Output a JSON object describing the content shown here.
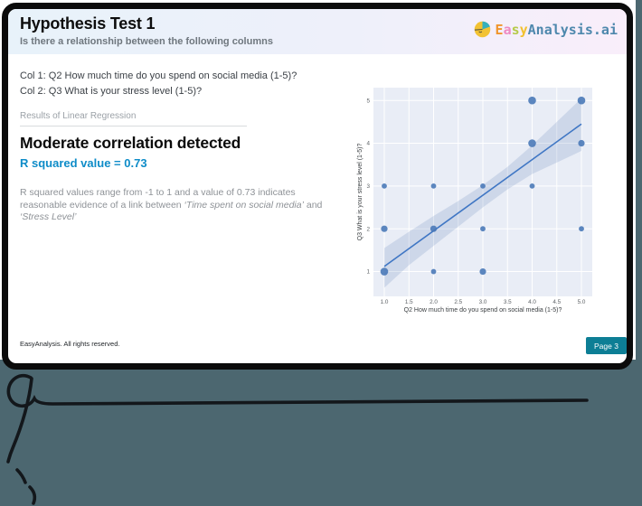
{
  "slide": {
    "header": {
      "title": "Hypothesis Test 1",
      "subtitle": "Is there a relationship between the following columns"
    },
    "logo": {
      "icon": "pie-chart",
      "icon_colors": {
        "pie": "#f2c233",
        "wedge": "#35b0bc",
        "slice_line": "#55543e"
      },
      "easy_letters": [
        {
          "ch": "E",
          "color": "#f0952c"
        },
        {
          "ch": "a",
          "color": "#ee8ac2"
        },
        {
          "ch": "s",
          "color": "#b6ca4a"
        },
        {
          "ch": "y",
          "color": "#f2c12f"
        }
      ],
      "rest": "Analysis.ai",
      "rest_color": "#4e88ad"
    },
    "columns": [
      "Col 1: Q2 How much time do you spend on social media (1-5)?",
      "Col 2: Q3 What is your stress level (1-5)?"
    ],
    "results": {
      "section_label": "Results of Linear Regression",
      "headline": "Moderate correlation detected",
      "r_squared_line": "R squared value = 0.73",
      "r_squared_color": "#0e8cc8",
      "explanation_parts": [
        {
          "text": "R squared values range from -1 to 1 and a value of 0.73 indicates reasonable evidence of a link between ",
          "italic": false
        },
        {
          "text": "‘Time spent on social media’",
          "italic": true
        },
        {
          "text": " and ",
          "italic": false
        },
        {
          "text": "‘Stress Level’",
          "italic": true
        }
      ]
    },
    "footer": {
      "copyright": "EasyAnalysis. All rights reserved.",
      "page_badge": "Page 3",
      "badge_color": "#0d7e95"
    }
  },
  "chart_data": {
    "type": "scatter",
    "title": "",
    "xlabel": "Q2 How much time do you spend on social media (1-5)?",
    "ylabel": "Q3 What is your stress level (1-5)?",
    "x_ticks": [
      1.0,
      1.5,
      2.0,
      2.5,
      3.0,
      3.5,
      4.0,
      4.5,
      5.0
    ],
    "y_ticks": [
      1,
      2,
      3,
      4,
      5
    ],
    "xlim": [
      0.78,
      5.22
    ],
    "ylim": [
      0.42,
      5.3
    ],
    "grid": true,
    "legend": false,
    "points": [
      {
        "x": 1,
        "y": 1,
        "w": 3
      },
      {
        "x": 1,
        "y": 2,
        "w": 2
      },
      {
        "x": 1,
        "y": 3,
        "w": 1
      },
      {
        "x": 2,
        "y": 1,
        "w": 1
      },
      {
        "x": 2,
        "y": 2,
        "w": 2
      },
      {
        "x": 2,
        "y": 3,
        "w": 1
      },
      {
        "x": 3,
        "y": 1,
        "w": 2
      },
      {
        "x": 3,
        "y": 2,
        "w": 1
      },
      {
        "x": 3,
        "y": 3,
        "w": 1
      },
      {
        "x": 4,
        "y": 3,
        "w": 1
      },
      {
        "x": 4,
        "y": 4,
        "w": 3
      },
      {
        "x": 4,
        "y": 5,
        "w": 3
      },
      {
        "x": 5,
        "y": 2,
        "w": 1
      },
      {
        "x": 5,
        "y": 4,
        "w": 2
      },
      {
        "x": 5,
        "y": 5,
        "w": 3
      }
    ],
    "regression_line": {
      "x1": 1,
      "y1": 1.12,
      "x2": 5,
      "y2": 4.45
    },
    "ci_band": {
      "x": [
        1.0,
        1.5,
        2.0,
        2.5,
        3.0,
        3.5,
        4.0,
        4.5,
        5.0
      ],
      "lower": [
        0.62,
        1.15,
        1.6,
        2.05,
        2.5,
        2.92,
        3.28,
        3.55,
        3.82
      ],
      "upper": [
        1.55,
        1.93,
        2.3,
        2.65,
        3.02,
        3.45,
        3.95,
        4.5,
        5.05
      ]
    },
    "colors": {
      "bg": "#e9edf6",
      "grid": "#ffffff",
      "point": "#4a79b8",
      "line": "#3f76c4",
      "band": "rgba(76,114,176,0.18)",
      "tick": "#5a5f63",
      "label": "#3c4043"
    }
  },
  "annotations": {
    "color": "#13171b",
    "width": 3.6,
    "strokes": [
      "M 34 418 C 20 410 6 424 10 438 C 14 452 32 453 38 441 C 40 445 46 447 58 447 L 649 443",
      "M 35 419 C 32 446 24 472 14 496 C 11 503 10 507 9 511",
      "M 19 520 Q 25 526 28 534",
      "M 33 539 Q 41 547 37 557"
    ]
  }
}
